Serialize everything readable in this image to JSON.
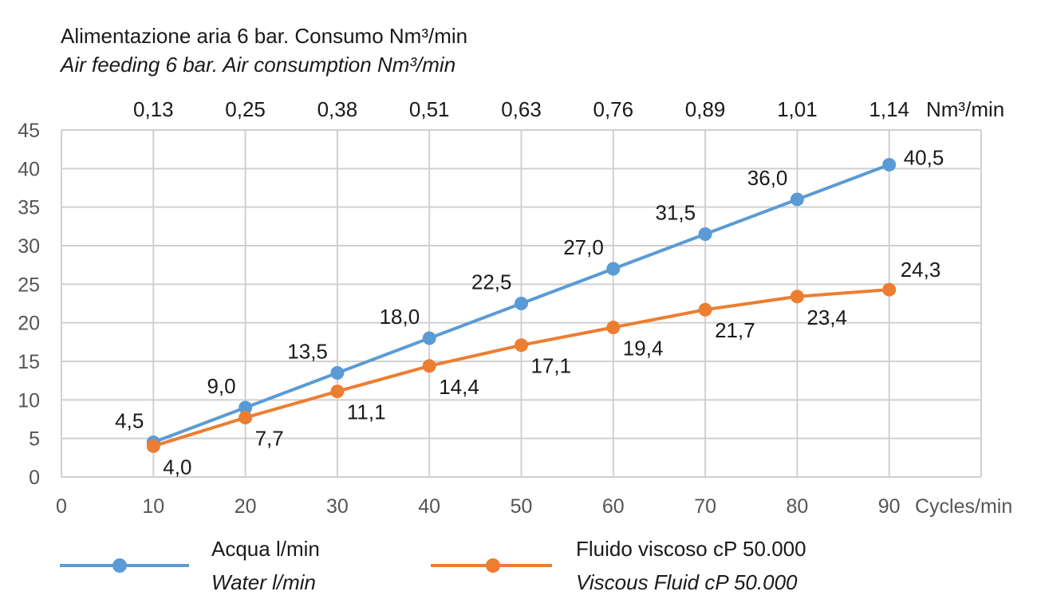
{
  "chart_data": {
    "type": "line",
    "title": "Alimentazione aria 6 bar. Consumo Nm³/min",
    "subtitle": "Air feeding 6 bar. Air consumption Nm³/min",
    "xlabel": "Cycles/min",
    "ylabel": "",
    "xlim": [
      0,
      100
    ],
    "ylim": [
      0,
      45
    ],
    "x_ticks": [
      "0",
      "10",
      "20",
      "30",
      "40",
      "50",
      "60",
      "70",
      "80",
      "90"
    ],
    "y_ticks": [
      "0",
      "5",
      "10",
      "15",
      "20",
      "25",
      "30",
      "35",
      "40",
      "45"
    ],
    "top_axis_label": "Nm³/min",
    "top_ticks": [
      "0,13",
      "0,25",
      "0,38",
      "0,51",
      "0,63",
      "0,76",
      "0,89",
      "1,01",
      "1,14"
    ],
    "grid": true,
    "legend_position": "bottom",
    "x": [
      10,
      20,
      30,
      40,
      50,
      60,
      70,
      80,
      90
    ],
    "series": [
      {
        "name": "Acqua l/min",
        "name_en": "Water l/min",
        "color": "#5b9bd5",
        "values": [
          4.5,
          9.0,
          13.5,
          18.0,
          22.5,
          27.0,
          31.5,
          36.0,
          40.5
        ],
        "labels": [
          "4,5",
          "9,0",
          "13,5",
          "18,0",
          "22,5",
          "27,0",
          "31,5",
          "36,0",
          "40,5"
        ]
      },
      {
        "name": "Fluido viscoso cP 50.000",
        "name_en": "Viscous Fluid cP 50.000",
        "color": "#ed7d31",
        "values": [
          4.0,
          7.7,
          11.1,
          14.4,
          17.1,
          19.4,
          21.7,
          23.4,
          24.3
        ],
        "labels": [
          "4,0",
          "7,7",
          "11,1",
          "14,4",
          "17,1",
          "19,4",
          "21,7",
          "23,4",
          "24,3"
        ]
      }
    ]
  }
}
